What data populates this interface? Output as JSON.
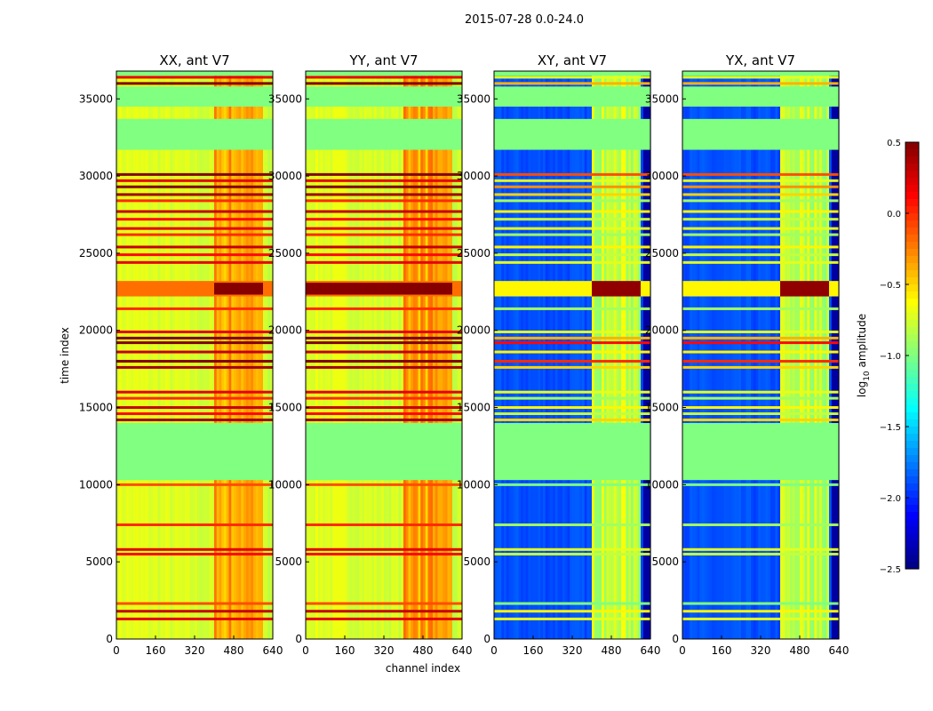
{
  "figure_title": "2015-07-28 0.0-24.0",
  "chart_data": {
    "type": "heatmap",
    "title": "2015-07-28 0.0-24.0",
    "xlabel": "channel index",
    "ylabel": "time index",
    "xlim": [
      0,
      640
    ],
    "ylim": [
      0,
      36800
    ],
    "x_ticks": [
      0,
      160,
      320,
      480,
      640
    ],
    "y_ticks": [
      0,
      5000,
      10000,
      15000,
      20000,
      25000,
      30000,
      35000
    ],
    "bright_channel_range": [
      400,
      600
    ],
    "panels": [
      {
        "title": "XX, ant V7",
        "pol": "XX",
        "base_level": -0.7
      },
      {
        "title": "YY, ant V7",
        "pol": "YY",
        "base_level": -0.7
      },
      {
        "title": "XY, ant V7",
        "pol": "XY",
        "base_level": -1.9
      },
      {
        "title": "YX, ant V7",
        "pol": "YX",
        "base_level": -1.9
      }
    ],
    "flagged_time_ranges": [
      [
        10300,
        14000
      ],
      [
        31700,
        33700
      ],
      [
        34500,
        35800
      ]
    ],
    "flag_level": -1.0,
    "bright_time_band": [
      22200,
      23200
    ],
    "colorbar": {
      "label": "log10 amplitude",
      "label_main": "log",
      "label_sub": "10",
      "label_rest": " amplitude",
      "min": -2.5,
      "max": 0.5,
      "ticks": [
        "0.5",
        "0.0",
        "−0.5",
        "−1.0",
        "−1.5",
        "−2.0",
        "−2.5"
      ],
      "tick_values": [
        0.5,
        0.0,
        -0.5,
        -1.0,
        -1.5,
        -2.0,
        -2.5
      ],
      "colormap": "jet"
    }
  }
}
